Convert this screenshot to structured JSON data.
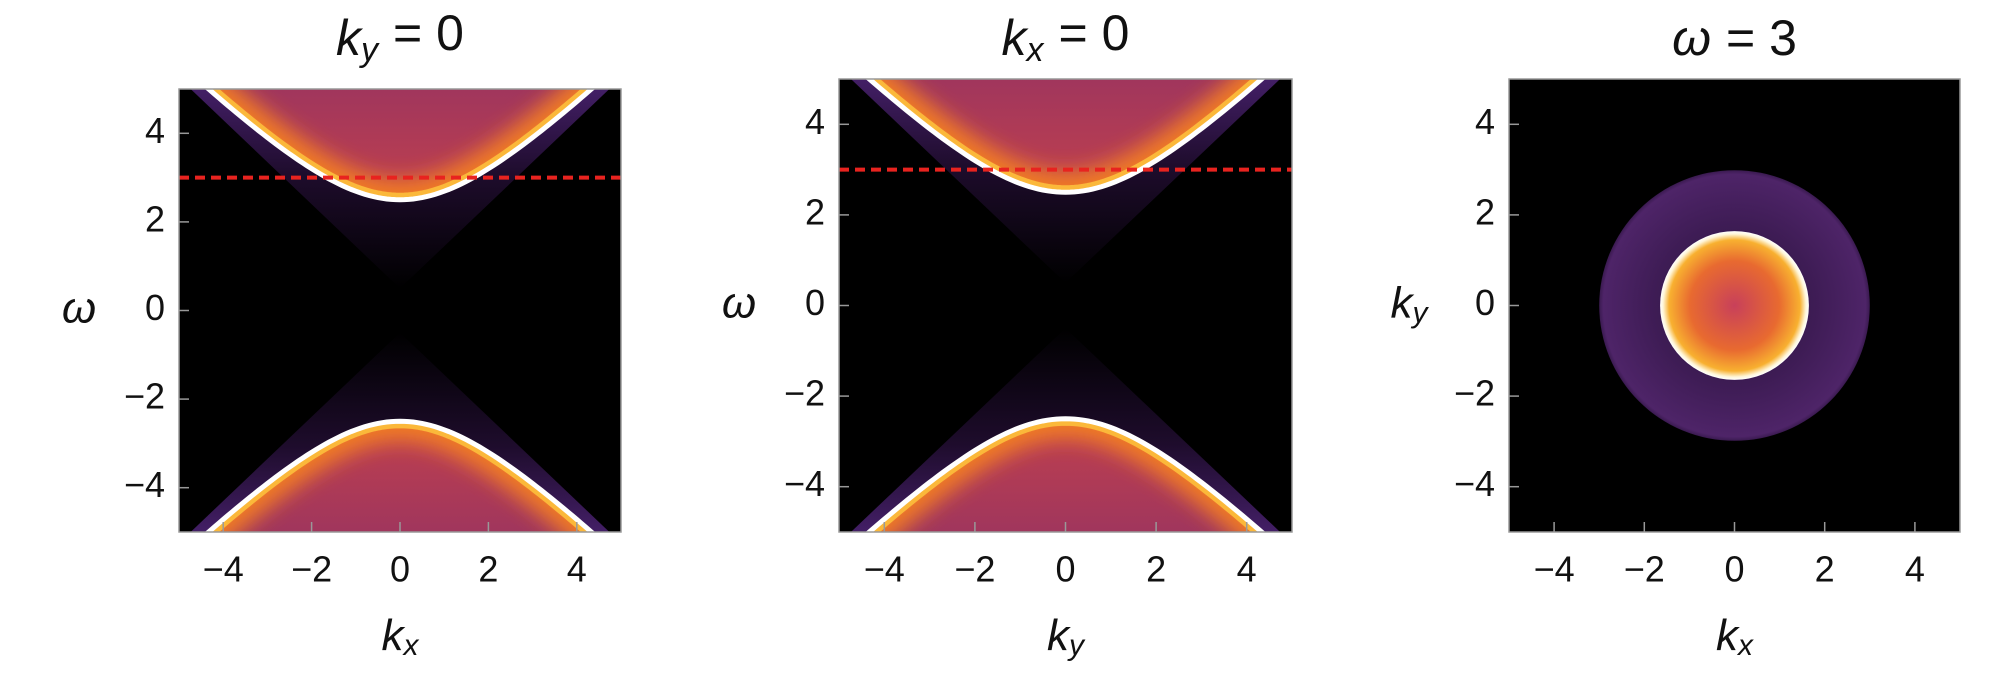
{
  "chart_data": [
    {
      "type": "heatmap",
      "title": {
        "symbol": "k",
        "subscript": "y",
        "rest": "= 0"
      },
      "x_label": {
        "symbol": "k",
        "subscript": "x"
      },
      "y_label": {
        "symbol": "ω"
      },
      "xlim": [
        -5,
        5
      ],
      "ylim": [
        -5,
        5
      ],
      "xticks": [
        {
          "value": -4,
          "label": "−4"
        },
        {
          "value": -2,
          "label": "−2"
        },
        0,
        2,
        4
      ],
      "yticks": [
        {
          "value": -4,
          "label": "−4"
        },
        {
          "value": -2,
          "label": "−2"
        },
        0,
        2,
        4
      ],
      "reference_line": {
        "value": 3,
        "color": "#e8231f"
      }
    },
    {
      "type": "heatmap",
      "title": {
        "symbol": "k",
        "subscript": "x",
        "rest": "= 0"
      },
      "x_label": {
        "symbol": "k",
        "subscript": "y"
      },
      "y_label": {
        "symbol": "ω"
      },
      "xlim": [
        -5,
        5
      ],
      "ylim": [
        -5,
        5
      ],
      "xticks": [
        {
          "value": -4,
          "label": "−4"
        },
        {
          "value": -2,
          "label": "−2"
        },
        0,
        2,
        4
      ],
      "yticks": [
        {
          "value": -4,
          "label": "−4"
        },
        {
          "value": -2,
          "label": "−2"
        },
        0,
        2,
        4
      ],
      "reference_line": {
        "value": 3,
        "color": "#e8231f"
      }
    },
    {
      "type": "ring",
      "title": {
        "symbol": "ω",
        "rest": "= 3"
      },
      "x_label": {
        "symbol": "k",
        "subscript": "x"
      },
      "y_label": {
        "symbol": "k",
        "subscript": "y"
      },
      "xlim": [
        -5,
        5
      ],
      "ylim": [
        -5,
        5
      ],
      "xticks": [
        {
          "value": -4,
          "label": "−4"
        },
        {
          "value": -2,
          "label": "−2"
        },
        0,
        2,
        4
      ],
      "yticks": [
        {
          "value": -4,
          "label": "−4"
        },
        {
          "value": -2,
          "label": "−2"
        },
        0,
        2,
        4
      ]
    }
  ]
}
